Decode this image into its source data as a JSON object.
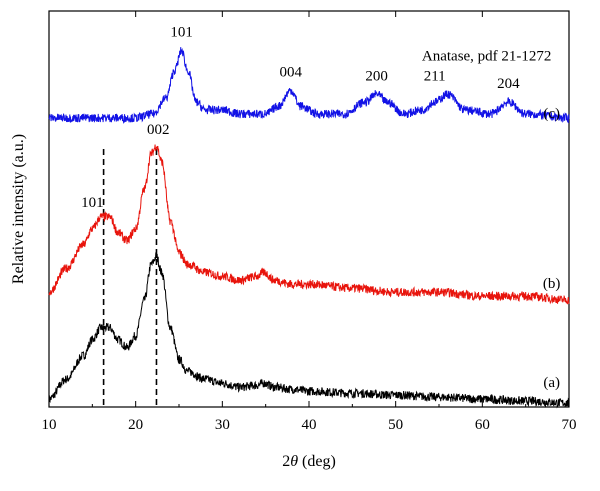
{
  "chart_data": {
    "type": "line",
    "xlabel_italic": "θ",
    "xlabel_prefix": "2",
    "xlabel_suffix": " (deg)",
    "ylabel": "Relative intensity (a.u.)",
    "xlim": [
      10,
      70
    ],
    "ylim": [
      0,
      1
    ],
    "xticks": [
      "10",
      "20",
      "30",
      "40",
      "50",
      "60",
      "70"
    ],
    "series_colors": {
      "a": "#000000",
      "b": "#e8140c",
      "c": "#1212e6"
    },
    "series": [
      {
        "name": "(a)",
        "color": "#000000",
        "x": [
          10,
          12,
          14,
          15,
          16,
          17,
          18,
          19,
          20,
          21,
          21.8,
          22.4,
          23,
          24,
          25,
          26,
          28,
          30,
          32,
          34,
          34.8,
          36,
          38,
          40,
          45,
          50,
          55,
          60,
          65,
          70
        ],
        "y": [
          0.02,
          0.07,
          0.13,
          0.17,
          0.2,
          0.2,
          0.17,
          0.15,
          0.18,
          0.27,
          0.36,
          0.38,
          0.34,
          0.2,
          0.12,
          0.09,
          0.07,
          0.06,
          0.05,
          0.055,
          0.06,
          0.05,
          0.045,
          0.04,
          0.035,
          0.03,
          0.025,
          0.02,
          0.015,
          0.01
        ]
      },
      {
        "name": "(b)",
        "color": "#e8140c",
        "x": [
          10,
          12,
          14,
          15,
          16,
          17,
          18,
          19,
          20,
          21,
          21.8,
          22.4,
          23,
          24,
          25,
          26,
          28,
          30,
          32,
          34,
          34.8,
          36,
          38,
          40,
          45,
          50,
          55,
          60,
          65,
          70
        ],
        "y": [
          0.29,
          0.35,
          0.41,
          0.45,
          0.48,
          0.48,
          0.44,
          0.42,
          0.45,
          0.55,
          0.64,
          0.66,
          0.62,
          0.47,
          0.39,
          0.36,
          0.34,
          0.33,
          0.32,
          0.33,
          0.34,
          0.32,
          0.31,
          0.31,
          0.3,
          0.29,
          0.29,
          0.28,
          0.28,
          0.27
        ]
      },
      {
        "name": "(c)",
        "color": "#1212e6",
        "x": [
          10,
          15,
          20,
          22,
          23.5,
          24.5,
          25.3,
          26,
          27,
          28,
          30,
          32,
          35,
          36.5,
          37.9,
          39,
          41,
          44,
          46.5,
          47.8,
          49,
          51,
          53,
          54.5,
          56,
          58,
          61,
          63,
          65,
          70
        ],
        "y": [
          0.73,
          0.73,
          0.73,
          0.74,
          0.78,
          0.85,
          0.9,
          0.85,
          0.77,
          0.75,
          0.75,
          0.74,
          0.74,
          0.76,
          0.8,
          0.76,
          0.74,
          0.74,
          0.77,
          0.79,
          0.77,
          0.74,
          0.75,
          0.77,
          0.79,
          0.75,
          0.74,
          0.77,
          0.74,
          0.73
        ]
      }
    ],
    "dashed_lines_x": [
      16.3,
      22.4
    ],
    "peak_labels": [
      {
        "text": "101",
        "x": 25.3,
        "y": 0.935
      },
      {
        "text": "004",
        "x": 37.9,
        "y": 0.835
      },
      {
        "text": "200",
        "x": 47.8,
        "y": 0.825
      },
      {
        "text": "211",
        "x": 54.5,
        "y": 0.825
      },
      {
        "text": "204",
        "x": 63.0,
        "y": 0.805
      },
      {
        "text": "002",
        "x": 22.6,
        "y": 0.69
      },
      {
        "text": "101",
        "x": 15.0,
        "y": 0.505
      }
    ],
    "series_labels": [
      {
        "text": "(c)",
        "x": 68.0,
        "y": 0.73
      },
      {
        "text": "(b)",
        "x": 68.0,
        "y": 0.3
      },
      {
        "text": "(a)",
        "x": 68.0,
        "y": 0.05
      }
    ],
    "note": "Anatase, pdf 21-1272",
    "note_pos": {
      "x": 60.5,
      "y": 0.875
    }
  }
}
